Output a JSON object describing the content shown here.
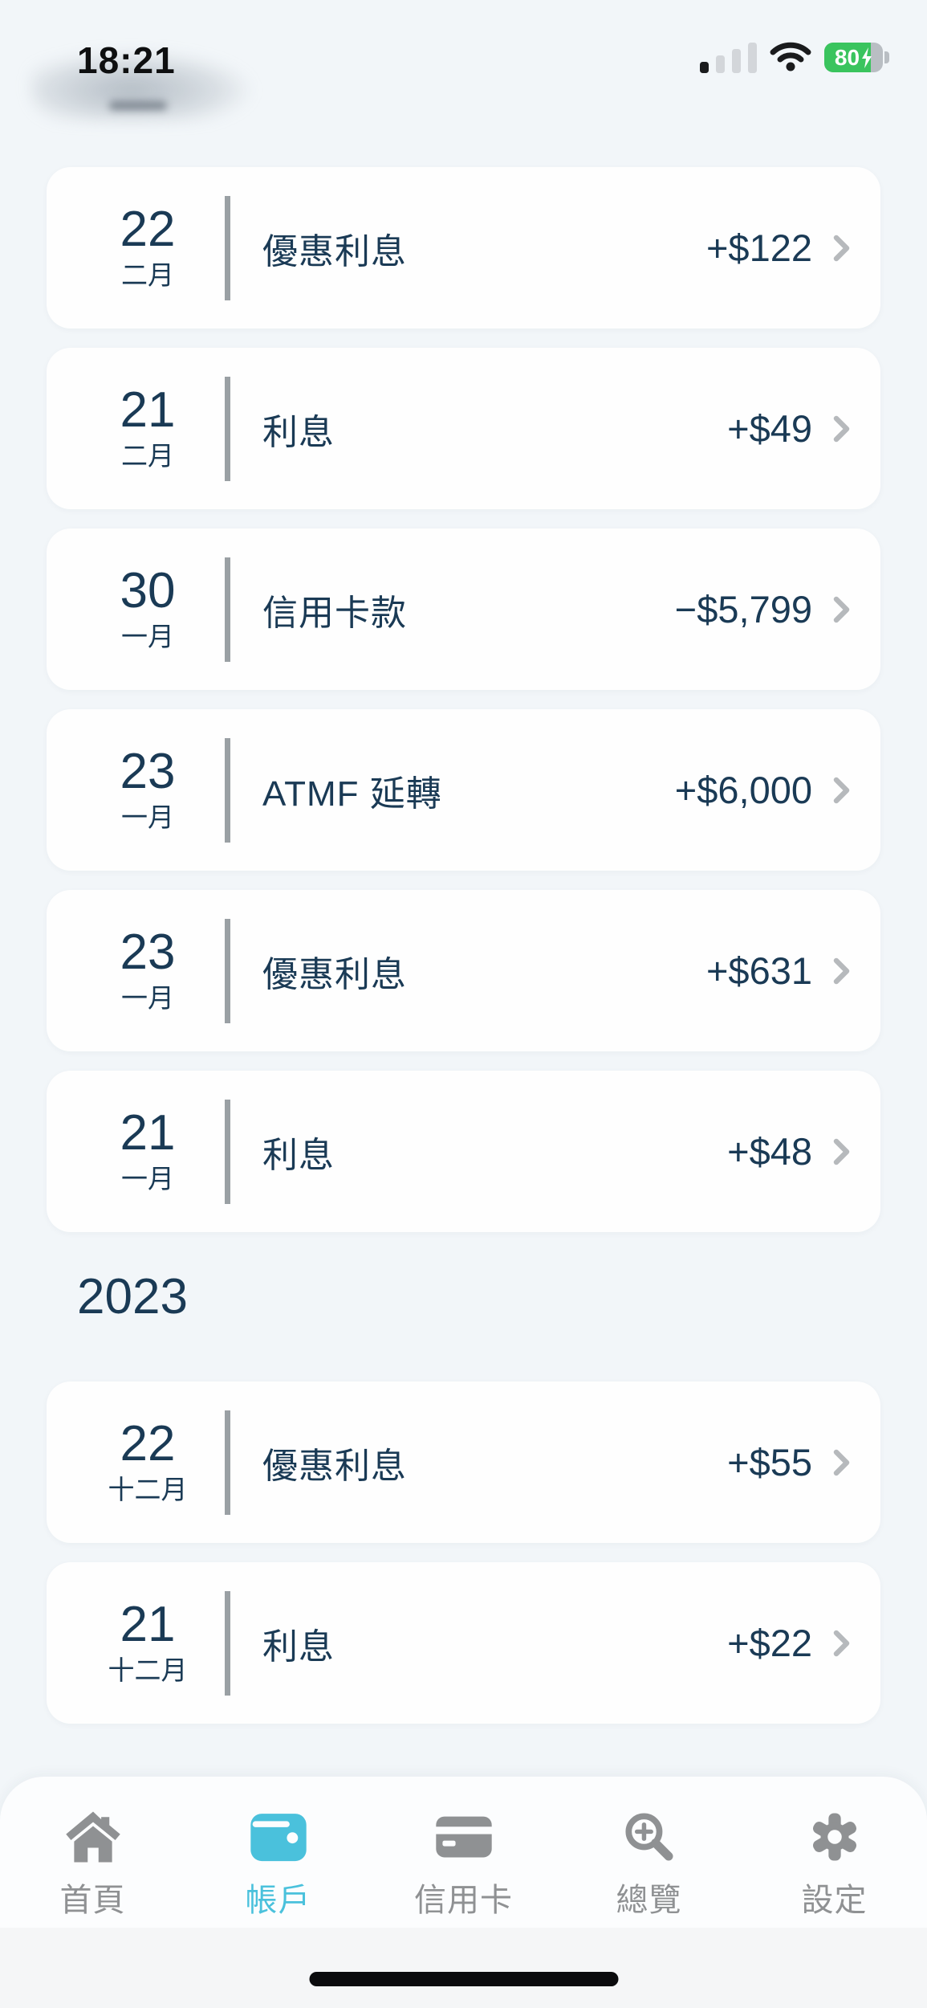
{
  "status_bar": {
    "time": "18:21",
    "battery_percent": "80"
  },
  "sections": [
    {
      "year_header": "",
      "items": [
        {
          "day": "22",
          "month": "二月",
          "title": "優惠利息",
          "amount": "+$122"
        },
        {
          "day": "21",
          "month": "二月",
          "title": "利息",
          "amount": "+$49"
        },
        {
          "day": "30",
          "month": "一月",
          "title": "信用卡款",
          "amount": "−$5,799"
        },
        {
          "day": "23",
          "month": "一月",
          "title": "ATMF 延轉",
          "amount": "+$6,000"
        },
        {
          "day": "23",
          "month": "一月",
          "title": "優惠利息",
          "amount": "+$631"
        },
        {
          "day": "21",
          "month": "一月",
          "title": "利息",
          "amount": "+$48"
        }
      ]
    },
    {
      "year_header": "2023",
      "items": [
        {
          "day": "22",
          "month": "十二月",
          "title": "優惠利息",
          "amount": "+$55"
        },
        {
          "day": "21",
          "month": "十二月",
          "title": "利息",
          "amount": "+$22"
        }
      ]
    }
  ],
  "tab_bar": {
    "items": [
      {
        "name": "home",
        "label": "首頁",
        "icon": "home-icon",
        "active": false
      },
      {
        "name": "accounts",
        "label": "帳戶",
        "icon": "wallet-icon",
        "active": true
      },
      {
        "name": "credit-cards",
        "label": "信用卡",
        "icon": "credit-card-icon",
        "active": false
      },
      {
        "name": "overview",
        "label": "總覽",
        "icon": "search-plus-icon",
        "active": false
      },
      {
        "name": "settings",
        "label": "設定",
        "icon": "gear-icon",
        "active": false
      }
    ]
  },
  "colors": {
    "background": "#f2f6f9",
    "card": "#fefefe",
    "text_navy": "#1a3a55",
    "divider_gray": "#9aa0a4",
    "chevron_gray": "#b6b9bc",
    "tab_inactive": "#8f9193",
    "tab_active_teal": "#4ac1dc",
    "battery_green": "#3ac45e"
  }
}
